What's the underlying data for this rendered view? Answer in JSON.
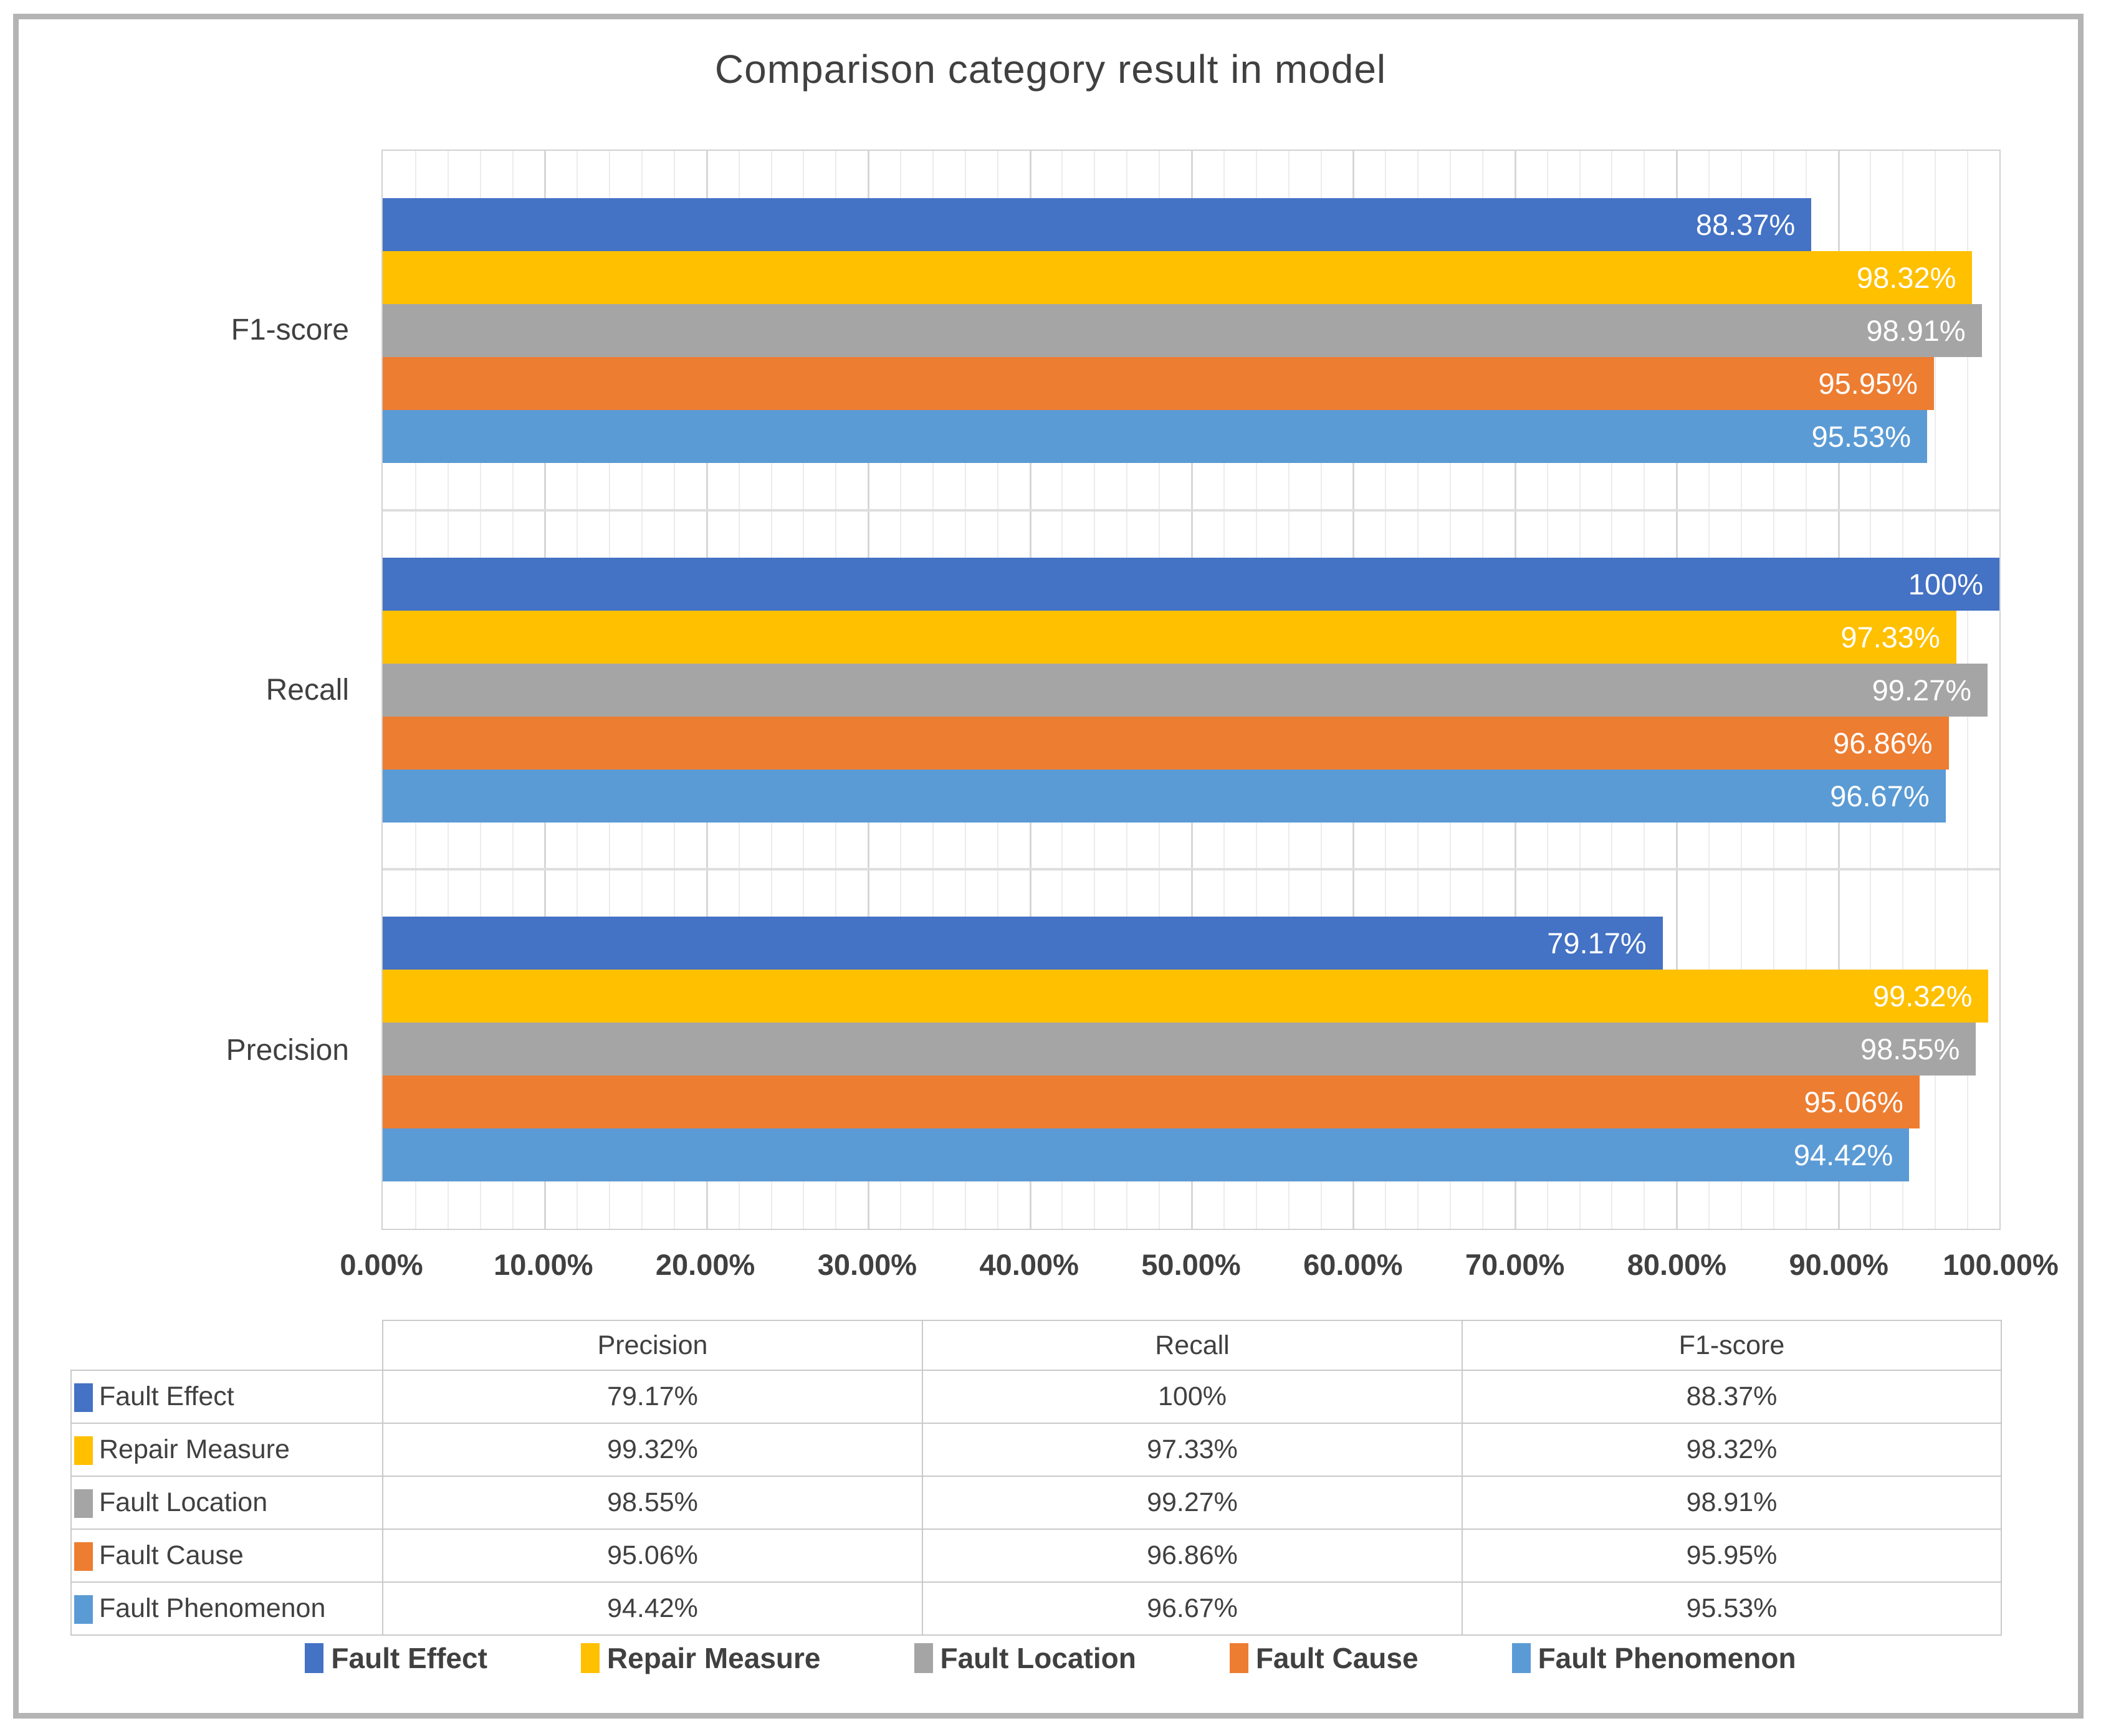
{
  "page": {
    "background_color": "#ffffff",
    "frame_border_color": "#b4b4b4"
  },
  "chart_data": {
    "type": "bar",
    "orientation": "horizontal",
    "title": "Comparison category result in model",
    "legend_position": "bottom",
    "grid": {
      "minor_step": 2,
      "major_step": 10,
      "minor_color": "#ececec",
      "major_color": "#d7d7d7"
    },
    "x_axis": {
      "min": 0,
      "max": 100,
      "tick_labels": [
        "0.00%",
        "10.00%",
        "20.00%",
        "30.00%",
        "40.00%",
        "50.00%",
        "60.00%",
        "70.00%",
        "80.00%",
        "90.00%",
        "100.00%"
      ]
    },
    "series": [
      {
        "name": "Fault Effect",
        "color": "#4472C4"
      },
      {
        "name": "Repair Measure",
        "color": "#FFC000"
      },
      {
        "name": "Fault Location",
        "color": "#A5A5A5"
      },
      {
        "name": "Fault Cause",
        "color": "#ED7D31"
      },
      {
        "name": "Fault Phenomenon",
        "color": "#5B9BD5"
      }
    ],
    "groups": [
      {
        "category": "F1-score",
        "values": [
          88.37,
          98.32,
          98.91,
          95.95,
          95.53
        ],
        "labels": [
          "88.37%",
          "98.32%",
          "98.91%",
          "95.95%",
          "95.53%"
        ]
      },
      {
        "category": "Recall",
        "values": [
          100,
          97.33,
          99.27,
          96.86,
          96.67
        ],
        "labels": [
          "100%",
          "97.33%",
          "99.27%",
          "96.86%",
          "96.67%"
        ]
      },
      {
        "category": "Precision",
        "values": [
          79.17,
          99.32,
          98.55,
          95.06,
          94.42
        ],
        "labels": [
          "79.17%",
          "99.32%",
          "98.55%",
          "95.06%",
          "94.42%"
        ]
      }
    ]
  },
  "table": {
    "columns": [
      "Precision",
      "Recall",
      "F1-score"
    ],
    "rows": [
      {
        "label": "Fault Effect",
        "color": "#4472C4",
        "values": [
          "79.17%",
          "100%",
          "88.37%"
        ]
      },
      {
        "label": "Repair Measure",
        "color": "#FFC000",
        "values": [
          "99.32%",
          "97.33%",
          "98.32%"
        ]
      },
      {
        "label": "Fault Location",
        "color": "#A5A5A5",
        "values": [
          "98.55%",
          "99.27%",
          "98.91%"
        ]
      },
      {
        "label": "Fault Cause",
        "color": "#ED7D31",
        "values": [
          "95.06%",
          "96.86%",
          "95.95%"
        ]
      },
      {
        "label": "Fault Phenomenon",
        "color": "#5B9BD5",
        "values": [
          "94.42%",
          "96.67%",
          "95.53%"
        ]
      }
    ]
  },
  "legend": {
    "items": [
      {
        "label": "Fault Effect",
        "color": "#4472C4"
      },
      {
        "label": "Repair Measure",
        "color": "#FFC000"
      },
      {
        "label": "Fault Location",
        "color": "#A5A5A5"
      },
      {
        "label": "Fault Cause",
        "color": "#ED7D31"
      },
      {
        "label": "Fault Phenomenon",
        "color": "#5B9BD5"
      }
    ]
  }
}
